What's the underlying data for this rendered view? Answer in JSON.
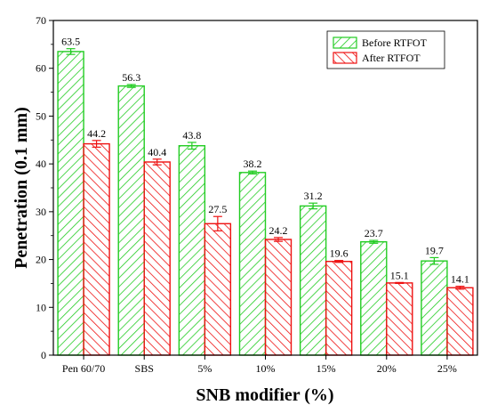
{
  "chart_data": {
    "type": "bar",
    "xlabel": "SNB modifier (%)",
    "ylabel": "Penetration (0.1 mm)",
    "ylim": [
      0,
      70
    ],
    "yticks": [
      0,
      10,
      20,
      30,
      40,
      50,
      60,
      70
    ],
    "categories": [
      "Pen 60/70",
      "SBS",
      "5%",
      "10%",
      "15%",
      "20%",
      "25%"
    ],
    "legend_position": "top-right",
    "series": [
      {
        "name": "Before RTFOT",
        "color": "#22cc22",
        "pattern": "diagonal-hatch-up",
        "values": [
          63.5,
          56.3,
          43.8,
          38.2,
          31.2,
          23.7,
          19.7
        ],
        "errors": [
          0.6,
          0.3,
          0.7,
          0.3,
          0.6,
          0.3,
          0.7
        ],
        "labels": [
          "63.5",
          "56.3",
          "43.8",
          "38.2",
          "31.2",
          "23.7",
          "19.7"
        ]
      },
      {
        "name": "After RTFOT",
        "color": "#ee1111",
        "pattern": "diagonal-hatch-down",
        "values": [
          44.2,
          40.4,
          27.5,
          24.2,
          19.6,
          15.1,
          14.1
        ],
        "errors": [
          0.7,
          0.6,
          1.5,
          0.4,
          0.2,
          0.1,
          0.3
        ],
        "labels": [
          "44.2",
          "40.4",
          "27.5",
          "24.2",
          "19.6",
          "15.1",
          "14.1"
        ]
      }
    ]
  }
}
